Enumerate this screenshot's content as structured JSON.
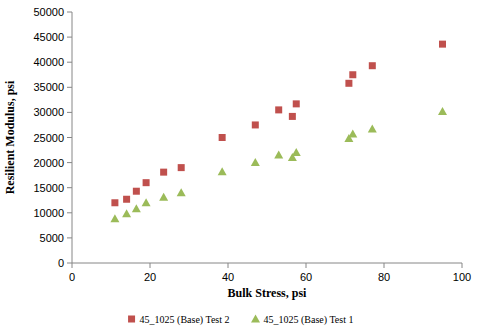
{
  "chart_data": {
    "type": "scatter",
    "x_label": "Bulk Stress, psi",
    "y_label": "Resilient Modulus, psi",
    "xlim": [
      0,
      100
    ],
    "xticks": [
      0,
      20,
      40,
      60,
      80,
      100
    ],
    "ylim": [
      0,
      50000
    ],
    "yticks": [
      0,
      5000,
      10000,
      15000,
      20000,
      25000,
      30000,
      35000,
      40000,
      45000,
      50000
    ],
    "grid": false,
    "legend": "bottom",
    "series": [
      {
        "name": "45_1025 (Base) Test 2",
        "color": "#c0504d",
        "marker": "square",
        "x": [
          11,
          14,
          16.5,
          19,
          23.5,
          28,
          38.5,
          47,
          53,
          56.5,
          57.5,
          71,
          72,
          77,
          95
        ],
        "values": [
          12000,
          12700,
          14300,
          16000,
          18100,
          19000,
          25000,
          27500,
          30500,
          29200,
          31700,
          35800,
          37500,
          39300,
          43600
        ]
      },
      {
        "name": "45_1025 (Base) Test 1",
        "color": "#9bbb59",
        "marker": "triangle",
        "x": [
          11,
          14,
          16.5,
          19,
          23.5,
          28,
          38.5,
          47,
          53,
          56.5,
          57.5,
          71,
          72,
          77,
          95
        ],
        "values": [
          8800,
          9800,
          10800,
          12000,
          13100,
          14000,
          18200,
          20000,
          21500,
          21000,
          22000,
          24800,
          25700,
          26700,
          30200
        ]
      }
    ]
  }
}
